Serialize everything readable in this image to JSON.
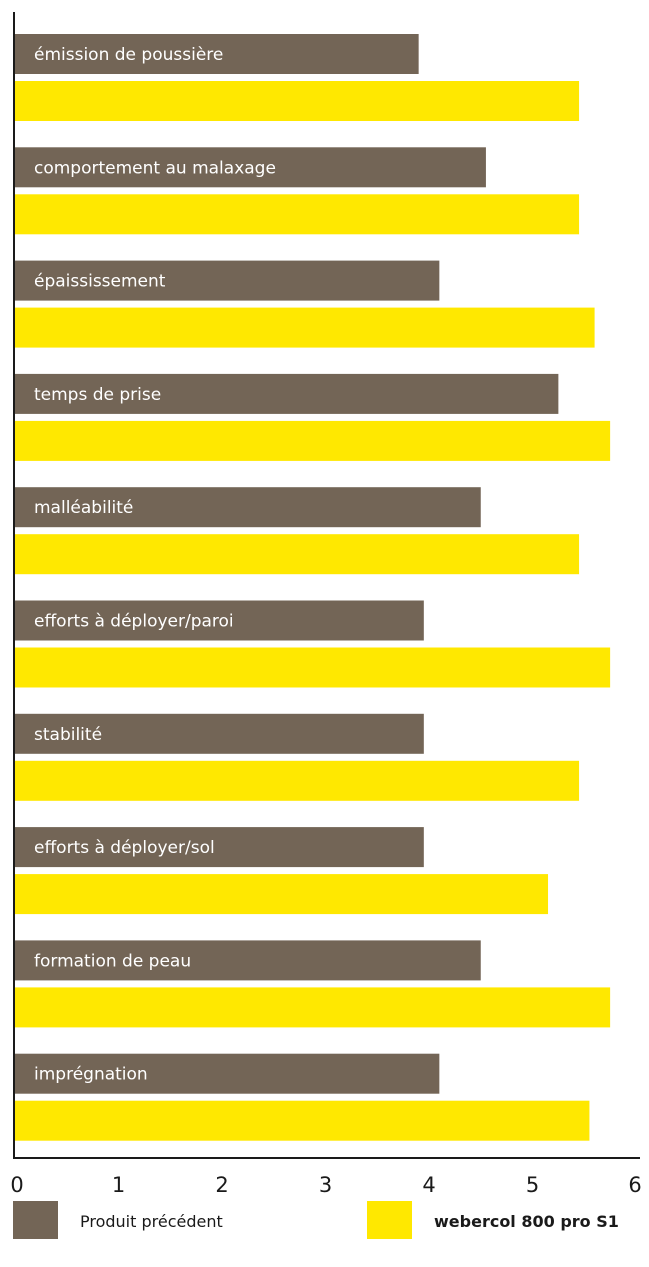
{
  "chart_data": {
    "type": "bar",
    "orientation": "horizontal",
    "categories": [
      "émission de poussière",
      "comportement au malaxage",
      "épaississement",
      "temps de prise",
      "malléabilité",
      "efforts à déployer/paroi",
      "stabilité",
      "efforts à déployer/sol",
      "formation de peau",
      "imprégnation"
    ],
    "series": [
      {
        "name": "Produit précédent",
        "color": "#736556",
        "values": [
          3.9,
          4.55,
          4.1,
          5.25,
          4.5,
          3.95,
          3.95,
          3.95,
          4.5,
          4.1
        ]
      },
      {
        "name": "webercol 800 pro S1",
        "color": "#ffe800",
        "values": [
          5.45,
          5.45,
          5.6,
          5.75,
          5.45,
          5.75,
          5.45,
          5.15,
          5.75,
          5.55
        ]
      }
    ],
    "xlim": [
      0,
      6
    ],
    "x_ticks": [
      "0",
      "1",
      "2",
      "3",
      "4",
      "5",
      "6"
    ],
    "grid": false,
    "legend_position": "bottom"
  }
}
